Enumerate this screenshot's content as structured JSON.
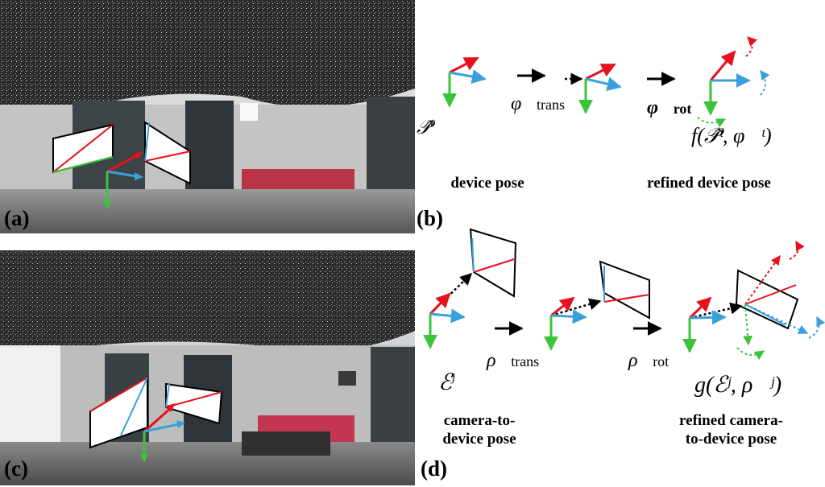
{
  "panels": {
    "a": {
      "label": "(a)"
    },
    "b": {
      "label": "(b)",
      "caption_left": "device pose",
      "caption_right": "refined device pose",
      "sym_pose": "𝒫̂",
      "sym_pose_sup": "t",
      "sym_trans": "φ⃗",
      "sym_trans_sub": "trans",
      "sym_rot": "φ⃗",
      "sym_rot_sub": "rot",
      "sym_result": "f(𝒫̂ᵗ, φ⃗ᵗ)"
    },
    "c": {
      "label": "(c)"
    },
    "d": {
      "label": "(d)",
      "caption_left_1": "camera-to-",
      "caption_left_2": "device pose",
      "caption_right_1": "refined camera-",
      "caption_right_2": "to-device pose",
      "sym_pose": "ℰ",
      "sym_pose_sup": "j",
      "sym_trans": "ρ⃗",
      "sym_trans_sub": "trans",
      "sym_rot": "ρ⃗",
      "sym_rot_sub": "rot",
      "sym_result": "g(ℰʲ, ρ⃗ʲ)"
    }
  },
  "colors": {
    "x_axis": "#e8101a",
    "y_axis": "#3aa0dc",
    "z_axis": "#3cc33c"
  }
}
